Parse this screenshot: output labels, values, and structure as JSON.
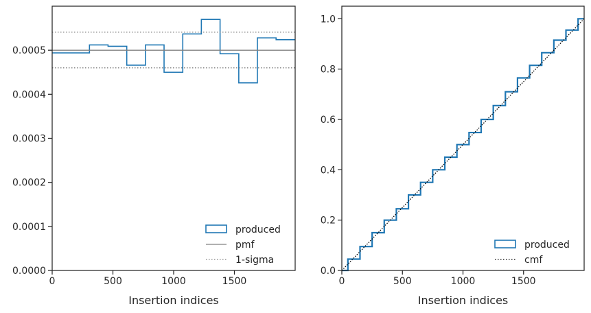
{
  "chart_data": [
    {
      "type": "step",
      "xlabel": "Insertion indices",
      "ylabel": "",
      "xlim": [
        0,
        2000
      ],
      "ylim": [
        0,
        0.0006
      ],
      "xticks": [
        0,
        500,
        1000,
        1500
      ],
      "xtick_labels": [
        "0",
        "500",
        "1000",
        "1500"
      ],
      "yticks": [
        0,
        0.0001,
        0.0002,
        0.0003,
        0.0004,
        0.0005
      ],
      "ytick_labels": [
        "0.0000",
        "0.0001",
        "0.0002",
        "0.0003",
        "0.0004",
        "0.0005"
      ],
      "series": [
        {
          "name": "produced",
          "kind": "step-histogram",
          "color": "#1f77b4",
          "bin_edges": [
            0,
            307,
            460,
            614,
            768,
            921,
            1075,
            1228,
            1382,
            1536,
            1689,
            1843,
            2000
          ],
          "values": [
            0.000494,
            0.000512,
            0.000509,
            0.000466,
            0.000512,
            0.00045,
            0.000537,
            0.00057,
            0.000492,
            0.000426,
            0.000528,
            0.000524
          ]
        },
        {
          "name": "pmf",
          "kind": "hline",
          "color": "#808080",
          "y": 0.0005
        },
        {
          "name": "1-sigma",
          "kind": "hline-dotted",
          "color": "#808080",
          "y": [
            0.00046,
            0.000541
          ]
        }
      ],
      "legend": [
        "produced",
        "pmf",
        "1-sigma"
      ],
      "legend_position": "lower-right",
      "grid": false
    },
    {
      "type": "line",
      "xlabel": "Insertion indices",
      "ylabel": "",
      "xlim": [
        0,
        2000
      ],
      "ylim": [
        0,
        1.05
      ],
      "xticks": [
        0,
        500,
        1000,
        1500
      ],
      "xtick_labels": [
        "0",
        "500",
        "1000",
        "1500"
      ],
      "yticks": [
        0.0,
        0.2,
        0.4,
        0.6,
        0.8,
        1.0
      ],
      "ytick_labels": [
        "0.0",
        "0.2",
        "0.4",
        "0.6",
        "0.8",
        "1.0"
      ],
      "series": [
        {
          "name": "produced",
          "kind": "cumulative-step",
          "color": "#1f77b4",
          "x": [
            0,
            100,
            200,
            300,
            400,
            500,
            600,
            700,
            800,
            900,
            1000,
            1100,
            1200,
            1300,
            1400,
            1500,
            1600,
            1700,
            1800,
            1900,
            2000
          ],
          "y": [
            0.0,
            0.045,
            0.095,
            0.15,
            0.2,
            0.245,
            0.3,
            0.35,
            0.4,
            0.45,
            0.5,
            0.548,
            0.6,
            0.655,
            0.71,
            0.765,
            0.815,
            0.865,
            0.915,
            0.955,
            1.0
          ]
        },
        {
          "name": "cmf",
          "kind": "line-dotted",
          "color": "#000000",
          "x": [
            0,
            2000
          ],
          "y": [
            0.0,
            1.0
          ]
        }
      ],
      "legend": [
        "produced",
        "cmf"
      ],
      "legend_position": "lower-right",
      "grid": false
    }
  ],
  "colors": {
    "produced": "#1f77b4",
    "pmf": "#808080",
    "sigma": "#808080",
    "cmf": "#000000",
    "axis": "#262626"
  }
}
